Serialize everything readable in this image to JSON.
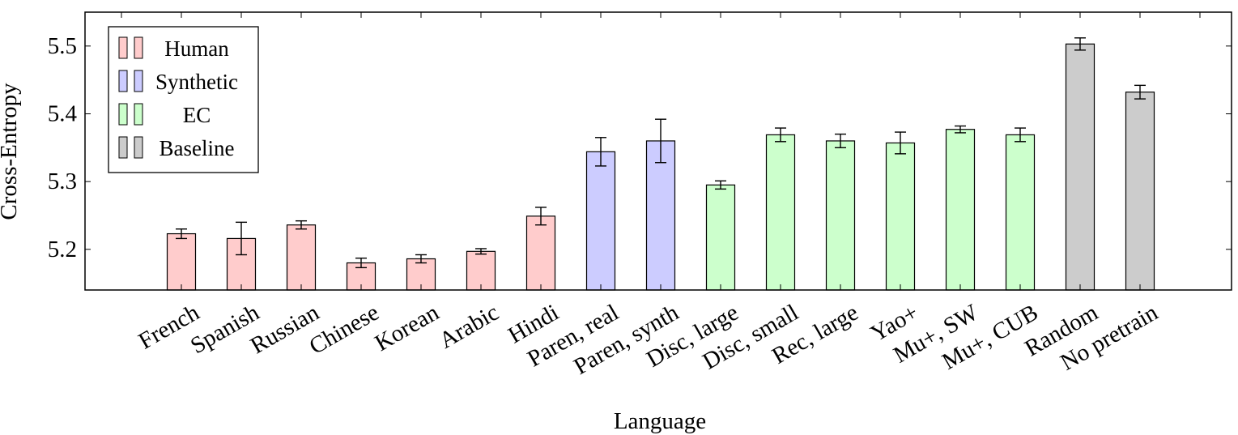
{
  "chart_data": {
    "type": "bar",
    "xlabel": "Language",
    "ylabel": "Cross-Entropy",
    "ylim": [
      5.14,
      5.55
    ],
    "yticks": [
      5.2,
      5.3,
      5.4,
      5.5
    ],
    "grid": false,
    "legend_position": "top-left",
    "categories": [
      "French",
      "Spanish",
      "Russian",
      "Chinese",
      "Korean",
      "Arabic",
      "Hindi",
      "Paren, real",
      "Paren, synth",
      "Disc, large",
      "Disc, small",
      "Rec, large",
      "Yao+",
      "Mu+, SW",
      "Mu+, CUB",
      "Random",
      "No pretrain"
    ],
    "values": [
      5.223,
      5.216,
      5.236,
      5.18,
      5.186,
      5.197,
      5.249,
      5.344,
      5.36,
      5.295,
      5.369,
      5.36,
      5.357,
      5.377,
      5.369,
      5.503,
      5.432
    ],
    "errors": [
      0.007,
      0.024,
      0.006,
      0.007,
      0.006,
      0.004,
      0.013,
      0.021,
      0.032,
      0.006,
      0.01,
      0.01,
      0.016,
      0.005,
      0.01,
      0.009,
      0.01
    ],
    "groups": [
      "Human",
      "Human",
      "Human",
      "Human",
      "Human",
      "Human",
      "Human",
      "Synthetic",
      "Synthetic",
      "EC",
      "EC",
      "EC",
      "EC",
      "EC",
      "EC",
      "Baseline",
      "Baseline"
    ],
    "series": [
      {
        "name": "Human",
        "color": "#ffcccc"
      },
      {
        "name": "Synthetic",
        "color": "#ccccff"
      },
      {
        "name": "EC",
        "color": "#ccffcc"
      },
      {
        "name": "Baseline",
        "color": "#cccccc"
      }
    ]
  }
}
